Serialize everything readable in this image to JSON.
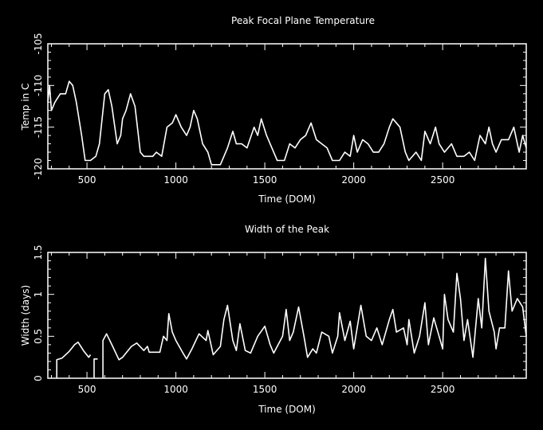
{
  "colors": {
    "background": "#000000",
    "foreground": "#ffffff"
  },
  "chart_data": [
    {
      "type": "line",
      "title": "Peak Focal Plane Temperature",
      "xlabel": "Time (DOM)",
      "ylabel": "Temp in C",
      "xlim": [
        280,
        2970
      ],
      "ylim": [
        -120,
        -105
      ],
      "xticks": [
        500,
        1000,
        1500,
        2000,
        2500
      ],
      "yticks": [
        -120,
        -115,
        -110,
        -105
      ],
      "x_minor_step": 100,
      "y_minor_step": 1,
      "grid": false,
      "segments": [
        [
          [
            280,
            -112
          ],
          [
            290,
            -110
          ],
          [
            300,
            -113
          ],
          [
            320,
            -112
          ],
          [
            350,
            -111
          ],
          [
            380,
            -111
          ],
          [
            400,
            -109.5
          ],
          [
            420,
            -110
          ],
          [
            440,
            -112
          ],
          [
            470,
            -116
          ],
          [
            490,
            -119
          ],
          [
            520,
            -119
          ],
          [
            550,
            -118.5
          ],
          [
            570,
            -117
          ],
          [
            600,
            -111
          ],
          [
            620,
            -110.5
          ],
          [
            640,
            -112.5
          ],
          [
            670,
            -117
          ],
          [
            690,
            -116
          ],
          [
            700,
            -114
          ],
          [
            720,
            -113
          ],
          [
            745,
            -111
          ],
          [
            770,
            -112.5
          ],
          [
            800,
            -118
          ],
          [
            820,
            -118.5
          ],
          [
            870,
            -118.5
          ],
          [
            890,
            -118
          ],
          [
            920,
            -118.5
          ],
          [
            950,
            -115
          ],
          [
            980,
            -114.5
          ],
          [
            1000,
            -113.5
          ],
          [
            1030,
            -115
          ],
          [
            1060,
            -116
          ],
          [
            1080,
            -115
          ],
          [
            1100,
            -113
          ],
          [
            1120,
            -114
          ],
          [
            1150,
            -117
          ],
          [
            1180,
            -118
          ],
          [
            1200,
            -119.5
          ],
          [
            1250,
            -119.5
          ],
          [
            1290,
            -117.5
          ],
          [
            1320,
            -115.5
          ],
          [
            1340,
            -117
          ],
          [
            1370,
            -117
          ],
          [
            1400,
            -117.5
          ],
          [
            1440,
            -115
          ],
          [
            1460,
            -116
          ],
          [
            1480,
            -114
          ],
          [
            1510,
            -116
          ],
          [
            1540,
            -117.5
          ],
          [
            1570,
            -119
          ],
          [
            1610,
            -119
          ],
          [
            1640,
            -117
          ],
          [
            1670,
            -117.5
          ],
          [
            1700,
            -116.5
          ],
          [
            1730,
            -116
          ],
          [
            1760,
            -114.5
          ],
          [
            1790,
            -116.5
          ],
          [
            1820,
            -117
          ],
          [
            1850,
            -117.5
          ],
          [
            1880,
            -119
          ],
          [
            1920,
            -119
          ],
          [
            1950,
            -118
          ],
          [
            1980,
            -118.5
          ],
          [
            2000,
            -116
          ],
          [
            2020,
            -118
          ],
          [
            2050,
            -116.5
          ],
          [
            2080,
            -117
          ],
          [
            2110,
            -118
          ],
          [
            2140,
            -118
          ],
          [
            2170,
            -117
          ],
          [
            2200,
            -115
          ],
          [
            2220,
            -114
          ],
          [
            2260,
            -115
          ],
          [
            2290,
            -118
          ],
          [
            2310,
            -119
          ],
          [
            2350,
            -118
          ],
          [
            2380,
            -119
          ],
          [
            2400,
            -115.5
          ],
          [
            2430,
            -117
          ],
          [
            2460,
            -115
          ],
          [
            2480,
            -117
          ],
          [
            2510,
            -118
          ],
          [
            2550,
            -117
          ],
          [
            2580,
            -118.5
          ],
          [
            2620,
            -118.5
          ],
          [
            2650,
            -118
          ],
          [
            2680,
            -119
          ],
          [
            2710,
            -116
          ],
          [
            2740,
            -117
          ],
          [
            2760,
            -115
          ],
          [
            2780,
            -117
          ],
          [
            2800,
            -118
          ],
          [
            2830,
            -116.5
          ],
          [
            2870,
            -116.5
          ],
          [
            2900,
            -115
          ],
          [
            2930,
            -118
          ],
          [
            2950,
            -116
          ],
          [
            2970,
            -117.5
          ]
        ]
      ]
    },
    {
      "type": "line",
      "title": "Width of the Peak",
      "xlabel": "Time (DOM)",
      "ylabel": "Width (days)",
      "xlim": [
        280,
        2970
      ],
      "ylim": [
        0,
        1.5
      ],
      "xticks": [
        500,
        1000,
        1500,
        2000,
        2500
      ],
      "yticks": [
        0,
        0.5,
        1,
        1.5
      ],
      "x_minor_step": 100,
      "y_minor_step": 0.1,
      "grid": false,
      "segments": [
        [
          [
            330,
            0
          ],
          [
            330,
            0.22
          ],
          [
            360,
            0.24
          ],
          [
            400,
            0.32
          ],
          [
            430,
            0.4
          ],
          [
            450,
            0.43
          ],
          [
            480,
            0.33
          ],
          [
            510,
            0.25
          ],
          [
            520,
            0.28
          ]
        ],
        [
          [
            540,
            0
          ],
          [
            540,
            0.23
          ],
          [
            560,
            0.23
          ]
        ],
        [
          [
            590,
            0
          ],
          [
            590,
            0.45
          ],
          [
            610,
            0.53
          ],
          [
            640,
            0.4
          ],
          [
            680,
            0.22
          ],
          [
            700,
            0.25
          ],
          [
            750,
            0.38
          ],
          [
            780,
            0.42
          ],
          [
            820,
            0.33
          ],
          [
            840,
            0.38
          ],
          [
            850,
            0.31
          ],
          [
            910,
            0.31
          ],
          [
            930,
            0.5
          ],
          [
            950,
            0.45
          ],
          [
            960,
            0.77
          ],
          [
            980,
            0.55
          ],
          [
            1000,
            0.45
          ],
          [
            1040,
            0.3
          ],
          [
            1060,
            0.23
          ],
          [
            1090,
            0.35
          ],
          [
            1130,
            0.53
          ],
          [
            1170,
            0.45
          ],
          [
            1180,
            0.57
          ],
          [
            1210,
            0.28
          ],
          [
            1250,
            0.38
          ],
          [
            1270,
            0.7
          ],
          [
            1290,
            0.87
          ],
          [
            1320,
            0.45
          ],
          [
            1340,
            0.33
          ],
          [
            1360,
            0.65
          ],
          [
            1390,
            0.33
          ],
          [
            1420,
            0.3
          ],
          [
            1460,
            0.5
          ],
          [
            1500,
            0.62
          ],
          [
            1530,
            0.4
          ],
          [
            1550,
            0.3
          ],
          [
            1600,
            0.5
          ],
          [
            1620,
            0.82
          ],
          [
            1640,
            0.45
          ],
          [
            1660,
            0.55
          ],
          [
            1690,
            0.85
          ],
          [
            1720,
            0.5
          ],
          [
            1740,
            0.25
          ],
          [
            1770,
            0.35
          ],
          [
            1790,
            0.3
          ],
          [
            1820,
            0.55
          ],
          [
            1860,
            0.5
          ],
          [
            1880,
            0.3
          ],
          [
            1910,
            0.5
          ],
          [
            1920,
            0.78
          ],
          [
            1950,
            0.45
          ],
          [
            1980,
            0.68
          ],
          [
            2000,
            0.35
          ],
          [
            2040,
            0.87
          ],
          [
            2070,
            0.5
          ],
          [
            2100,
            0.45
          ],
          [
            2130,
            0.6
          ],
          [
            2160,
            0.4
          ],
          [
            2200,
            0.7
          ],
          [
            2220,
            0.82
          ],
          [
            2240,
            0.55
          ],
          [
            2280,
            0.6
          ],
          [
            2300,
            0.4
          ],
          [
            2310,
            0.7
          ],
          [
            2340,
            0.3
          ],
          [
            2370,
            0.5
          ],
          [
            2400,
            0.9
          ],
          [
            2420,
            0.4
          ],
          [
            2450,
            0.72
          ],
          [
            2480,
            0.5
          ],
          [
            2500,
            0.35
          ],
          [
            2510,
            1.0
          ],
          [
            2530,
            0.7
          ],
          [
            2560,
            0.55
          ],
          [
            2580,
            1.25
          ],
          [
            2600,
            0.95
          ],
          [
            2620,
            0.45
          ],
          [
            2640,
            0.7
          ],
          [
            2670,
            0.25
          ],
          [
            2700,
            0.95
          ],
          [
            2720,
            0.6
          ],
          [
            2740,
            1.43
          ],
          [
            2760,
            0.8
          ],
          [
            2790,
            0.55
          ],
          [
            2800,
            0.35
          ],
          [
            2820,
            0.6
          ],
          [
            2850,
            0.6
          ],
          [
            2870,
            1.28
          ],
          [
            2890,
            0.8
          ],
          [
            2920,
            0.95
          ],
          [
            2950,
            0.85
          ],
          [
            2970,
            0.5
          ]
        ]
      ]
    }
  ]
}
